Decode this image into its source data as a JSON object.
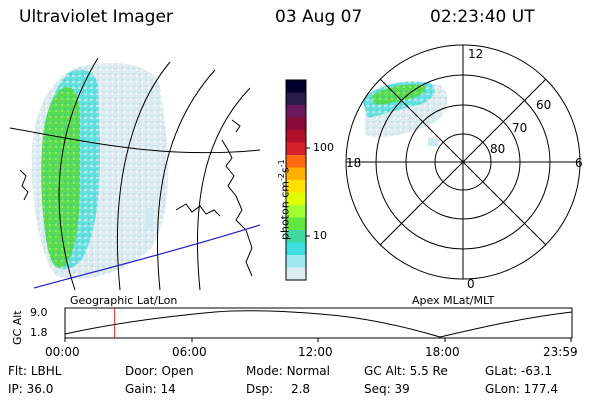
{
  "header": {
    "instrument": "Ultraviolet Imager",
    "date": "03 Aug 07",
    "time": "02:23:40 UT"
  },
  "colorbar": {
    "unit_label": "photon cm",
    "unit_sup1": "-2",
    "unit_mid": "s",
    "unit_sup2": "-1",
    "ticks": [
      "100",
      "10"
    ],
    "colors": [
      "#000033",
      "#2a1a4a",
      "#6a1a5a",
      "#8a0a3a",
      "#b0102a",
      "#d8202a",
      "#ff6a10",
      "#ffb000",
      "#ffe000",
      "#e0ff00",
      "#a0ff30",
      "#60e840",
      "#40d8a0",
      "#40e0e0",
      "#a0e8f0",
      "#dcecf0"
    ]
  },
  "left_panel": {
    "caption": "Geographic Lat/Lon"
  },
  "right_panel": {
    "caption": "Apex MLat/MLT",
    "mlt_labels": {
      "top": "12",
      "bottom": "0",
      "left": "18",
      "right": "6"
    },
    "lat_labels": [
      "60",
      "70",
      "80"
    ]
  },
  "timeline": {
    "ylabel": "GC Alt",
    "yticks": [
      "9.0",
      "1.8"
    ],
    "xticks": [
      "00:00",
      "06:00",
      "12:00",
      "18:00",
      "23:59"
    ],
    "marker_fraction": 0.098
  },
  "footer": {
    "row1": [
      {
        "label": "Flt:",
        "value": "LBHL"
      },
      {
        "label": "Door:",
        "value": "Open"
      },
      {
        "label": "Mode:",
        "value": "Normal"
      },
      {
        "label": "GC Alt:",
        "value": "5.5 Re"
      },
      {
        "label": "GLat:",
        "value": "-63.1"
      }
    ],
    "row2": [
      {
        "label": "IP:",
        "value": "36.0"
      },
      {
        "label": "Gain:",
        "value": "14"
      },
      {
        "label": "Dsp:",
        "value": "2.8"
      },
      {
        "label": "Seq:",
        "value": "39"
      },
      {
        "label": "GLon:",
        "value": "177.4"
      }
    ]
  },
  "colors": {
    "grid": "#000000",
    "trajectory": "#2020c0",
    "marker": "#cc2020",
    "aurora_bright": "#44dd44",
    "aurora_mid": "#44dddd",
    "aurora_dim": "#d8eaf0"
  }
}
